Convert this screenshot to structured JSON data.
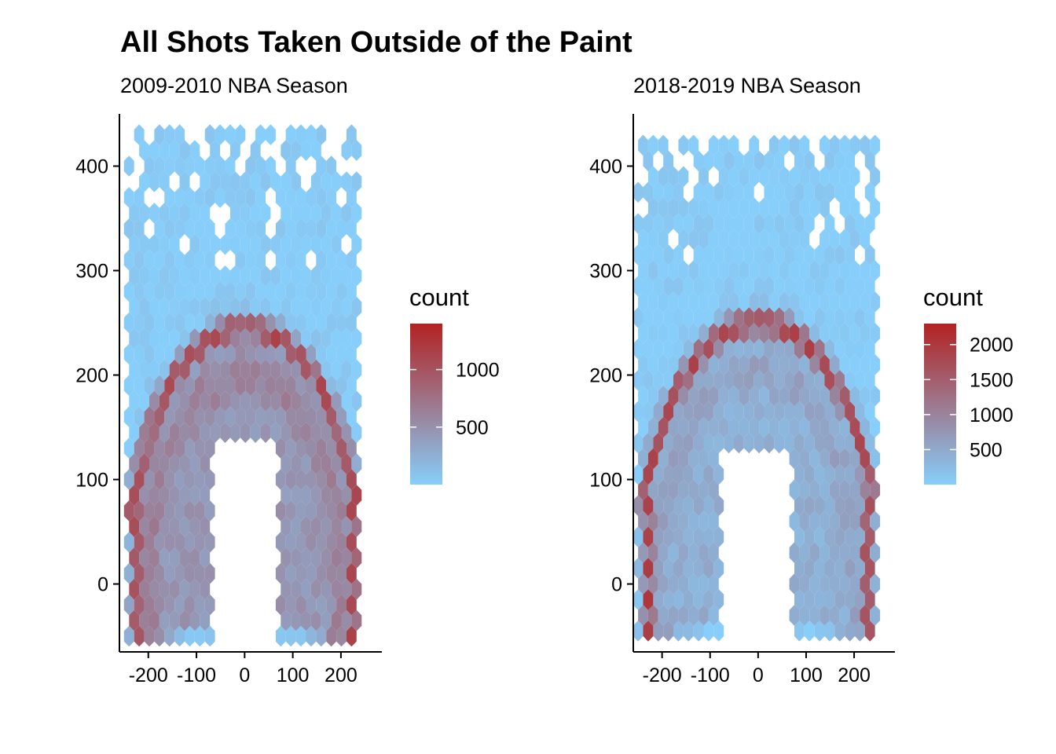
{
  "title": "All Shots Taken Outside of the Paint",
  "colors": {
    "low": "#87CEFA",
    "high": "#B22222",
    "axis": "#000000"
  },
  "chart_data": [
    {
      "type": "heatmap",
      "subtitle": "2009-2010 NBA Season",
      "xlabel": "",
      "ylabel": "",
      "xlim": [
        -260,
        285
      ],
      "ylim": [
        -65,
        450
      ],
      "x_ticks": [
        -200,
        -100,
        0,
        100,
        200
      ],
      "x_tick_labels": [
        "-200",
        "-100",
        "0",
        "100",
        "200"
      ],
      "y_ticks": [
        0,
        100,
        200,
        300,
        400
      ],
      "y_tick_labels": [
        "0",
        "100",
        "200",
        "300",
        "400"
      ],
      "grid": false,
      "legend": {
        "title": "count",
        "placement": "right",
        "min": 0,
        "max": 1400,
        "ticks": [
          500,
          1000
        ],
        "tick_labels": [
          "500",
          "1000"
        ]
      },
      "hex_x_range": [
        -240,
        240
      ],
      "hex_y_range": [
        -50,
        430
      ],
      "paint": {
        "x_min": -80,
        "x_max": 80,
        "y_max": 140
      },
      "arc": {
        "center_x": 0,
        "radius": 245,
        "corner_x": 225,
        "corner_y_max": 80
      },
      "midrange_arc": {
        "radius": 200
      }
    },
    {
      "type": "heatmap",
      "subtitle": "2018-2019 NBA Season",
      "xlabel": "",
      "ylabel": "",
      "xlim": [
        -260,
        285
      ],
      "ylim": [
        -65,
        450
      ],
      "x_ticks": [
        -200,
        -100,
        0,
        100,
        200
      ],
      "x_tick_labels": [
        "-200",
        "-100",
        "0",
        "100",
        "200"
      ],
      "y_ticks": [
        0,
        100,
        200,
        300,
        400
      ],
      "y_tick_labels": [
        "0",
        "100",
        "200",
        "300",
        "400"
      ],
      "grid": false,
      "legend": {
        "title": "count",
        "placement": "right",
        "min": 0,
        "max": 2300,
        "ticks": [
          500,
          1000,
          1500,
          2000
        ],
        "tick_labels": [
          "500",
          "1000",
          "1500",
          "2000"
        ]
      },
      "hex_x_range": [
        -250,
        245
      ],
      "hex_y_range": [
        -45,
        430
      ],
      "paint": {
        "x_min": -80,
        "x_max": 80,
        "y_max": 140
      },
      "arc": {
        "center_x": 0,
        "radius": 250,
        "corner_x": 228,
        "corner_y_max": 90
      },
      "midrange_arc": {
        "radius": 205
      }
    }
  ]
}
